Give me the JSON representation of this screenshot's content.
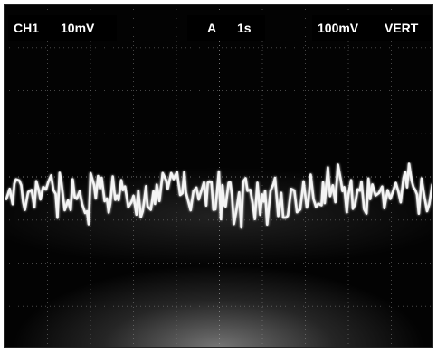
{
  "readout": {
    "channel": "CH1",
    "volts_per_div": "10mV",
    "trigger_mode": "A",
    "time_per_div": "1s",
    "trigger_level": "100mV",
    "display_mode": "VERT"
  },
  "colors": {
    "screen_background": "#030303",
    "trace": "#f4f4f4",
    "graticule": "#9a9a9a"
  }
}
